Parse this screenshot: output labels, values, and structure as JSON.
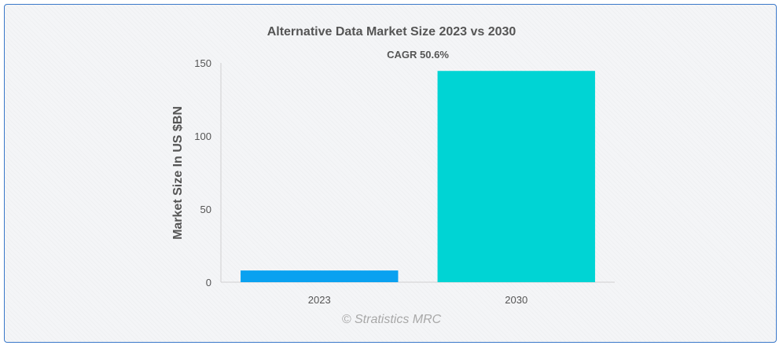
{
  "chart_data": {
    "type": "bar",
    "title": "Alternative Data Market Size 2023 vs 2030",
    "xlabel": "",
    "ylabel": "Market Size In US $BN",
    "categories": [
      "2023",
      "2030"
    ],
    "values": [
      8,
      144.5
    ],
    "ylim": [
      0,
      150
    ],
    "yticks": [
      0,
      50,
      100,
      150
    ],
    "bar_colors": [
      "#0aa1f0",
      "#00d4d4"
    ],
    "annotation": "CAGR 50.6%",
    "grid": false,
    "legend": "none"
  },
  "watermark": "© Stratistics MRC"
}
